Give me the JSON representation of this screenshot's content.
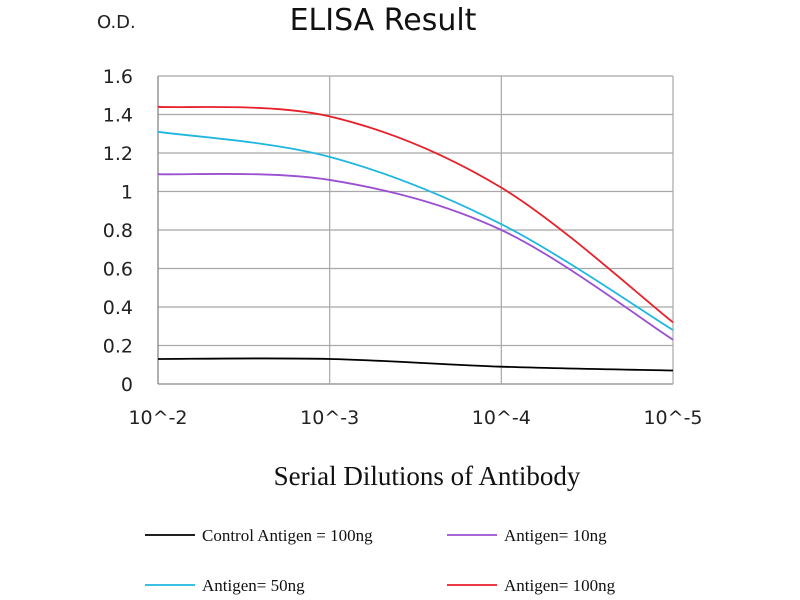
{
  "chart_data": {
    "type": "line",
    "title": "ELISA Result",
    "ylabel": "O.D.",
    "xlabel": "Serial Dilutions of Antibody",
    "categories": [
      "10^-2",
      "10^-3",
      "10^-4",
      "10^-5"
    ],
    "ylim": [
      0,
      1.6
    ],
    "yticks": [
      "0",
      "0.2",
      "0.4",
      "0.6",
      "0.8",
      "1",
      "1.2",
      "1.4",
      "1.6"
    ],
    "grid": true,
    "legend_position": "bottom",
    "series": [
      {
        "name": "Control Antigen = 100ng",
        "color": "#000000",
        "values": [
          0.13,
          0.13,
          0.09,
          0.07
        ]
      },
      {
        "name": "Antigen= 10ng",
        "color": "#9b4fd1",
        "values": [
          1.09,
          1.06,
          0.8,
          0.23
        ]
      },
      {
        "name": "Antigen= 50ng",
        "color": "#1fb7e0",
        "values": [
          1.31,
          1.18,
          0.83,
          0.28
        ]
      },
      {
        "name": "Antigen= 100ng",
        "color": "#e8202a",
        "values": [
          1.44,
          1.39,
          1.02,
          0.32
        ]
      }
    ]
  }
}
